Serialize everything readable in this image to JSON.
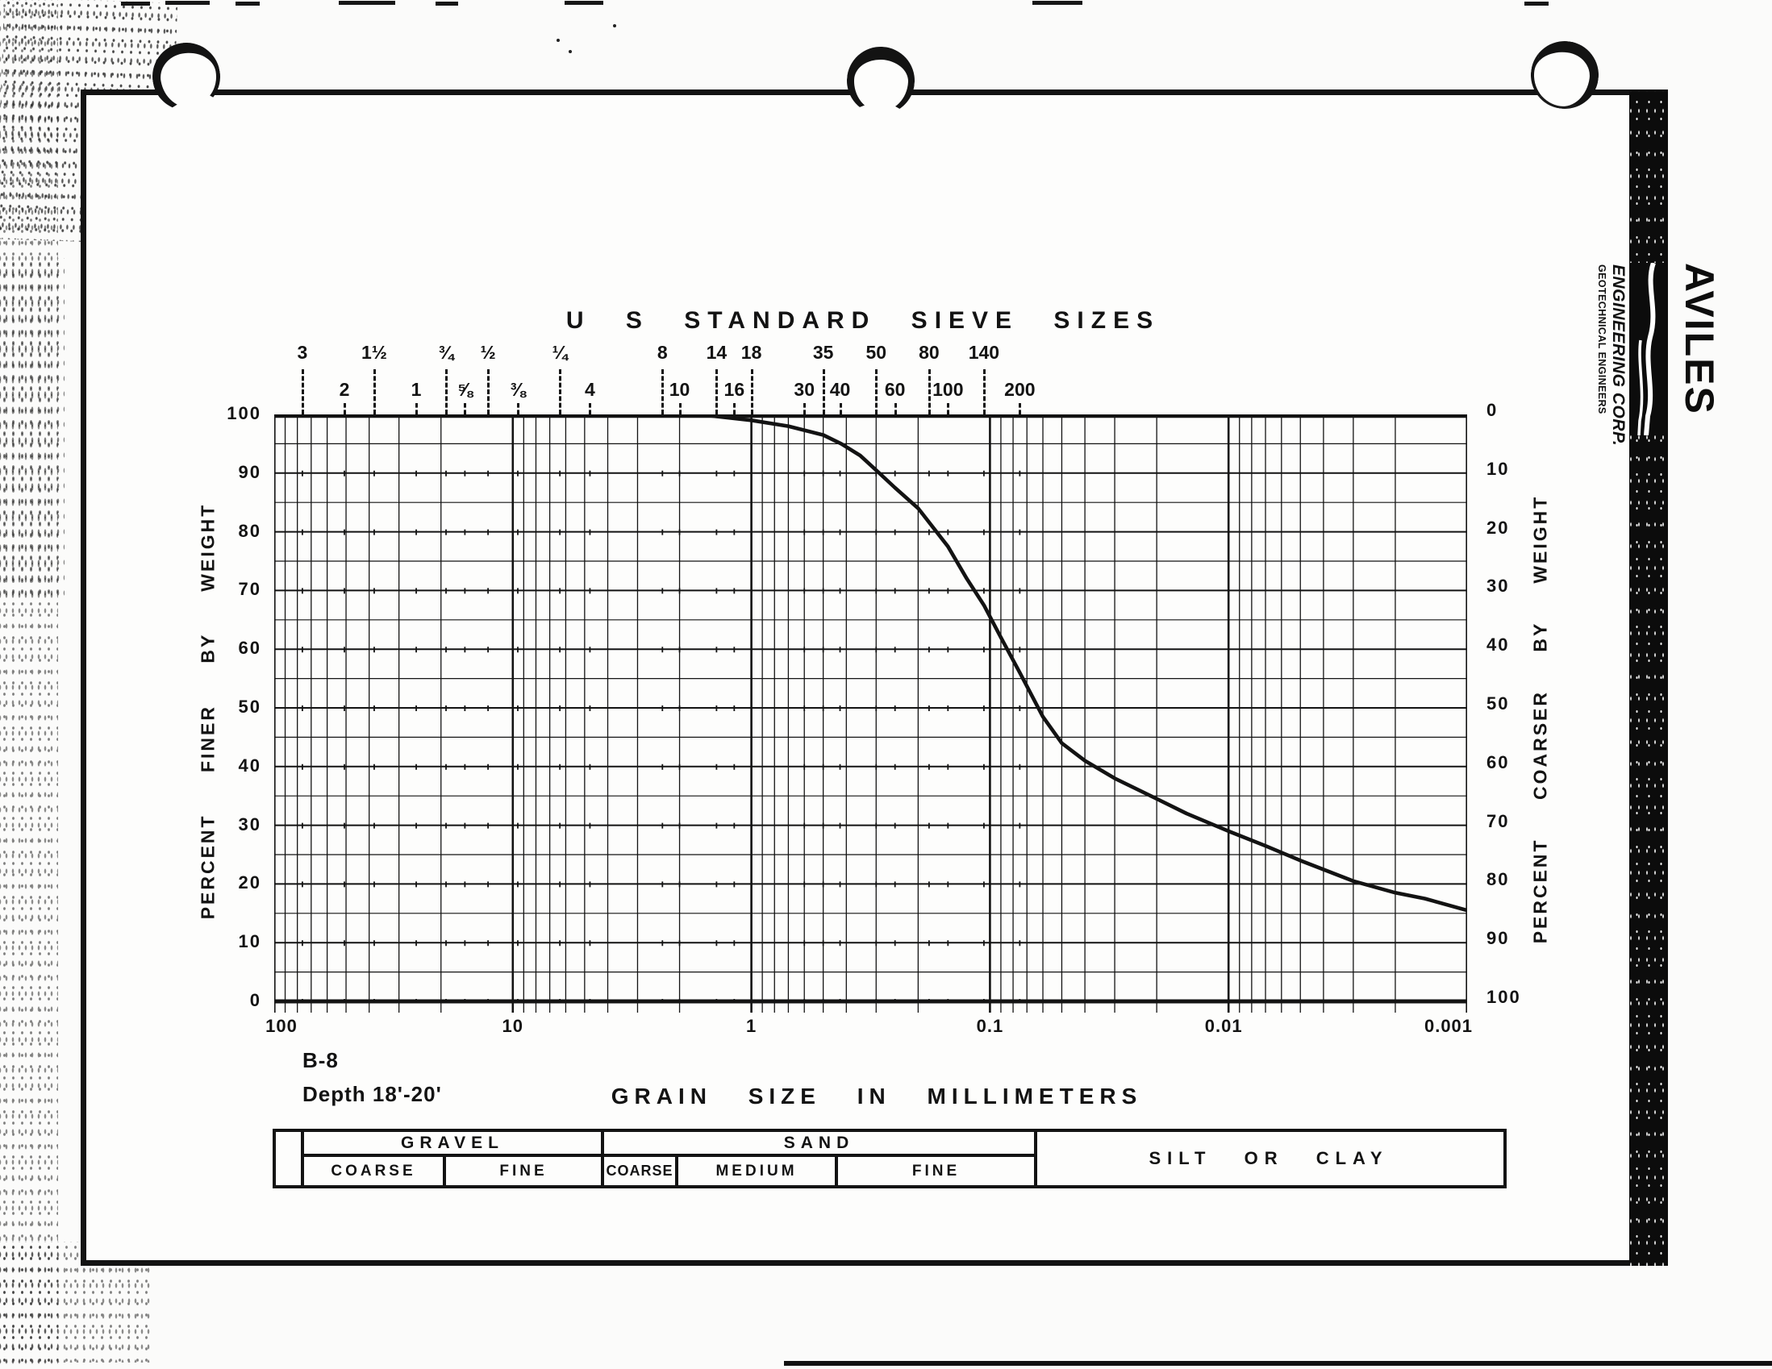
{
  "page": {
    "title_top": "U S STANDARD SIEVE SIZES",
    "sample_id": "B-8",
    "depth_label": "Depth 18'-20'",
    "xaxis_title": "GRAIN SIZE IN MILLIMETERS",
    "ylabel_left": "PERCENT FINER BY WEIGHT",
    "ylabel_right": "PERCENT COARSER BY WEIGHT",
    "ink_color": "#131313",
    "paper_color": "#fdfdfc"
  },
  "logo": {
    "name": "AVILES",
    "line1": "ENGINEERING CORP.",
    "line2": "GEOTECHNICAL ENGINEERS"
  },
  "axes": {
    "x_decade_labels": [
      "100",
      "10",
      "1",
      "0.1",
      "0.01",
      "0.001"
    ],
    "y_left_labels": [
      "100",
      "90",
      "80",
      "70",
      "60",
      "50",
      "40",
      "30",
      "20",
      "10",
      "0"
    ],
    "y_right_labels": [
      "0",
      "10",
      "20",
      "30",
      "40",
      "50",
      "60",
      "70",
      "80",
      "90",
      "100"
    ]
  },
  "classification": {
    "gravel": "GRAVEL",
    "gravel_coarse": "COARSE",
    "gravel_fine": "FINE",
    "sand": "SAND",
    "sand_coarse": "COARSE",
    "sand_medium": "MEDIUM",
    "sand_fine": "FINE",
    "silt_or_clay": "SILT OR CLAY"
  },
  "chart_data": {
    "type": "line",
    "title": "U S STANDARD SIEVE SIZES",
    "xlabel": "GRAIN SIZE IN MILLIMETERS",
    "ylabel": "PERCENT FINER BY WEIGHT",
    "ylabel_secondary": "PERCENT COARSER BY WEIGHT",
    "x_scale": "log",
    "x_range_mm": [
      100,
      0.001
    ],
    "ylim": [
      0,
      100
    ],
    "grid": true,
    "series": [
      {
        "name": "B-8 Depth 18'-20'",
        "points_mm_percent_finer": [
          [
            2.5,
            100
          ],
          [
            1.5,
            99.8
          ],
          [
            1.0,
            99
          ],
          [
            0.7,
            98
          ],
          [
            0.5,
            96.5
          ],
          [
            0.42,
            95
          ],
          [
            0.35,
            93
          ],
          [
            0.3,
            90.5
          ],
          [
            0.25,
            87.5
          ],
          [
            0.2,
            84
          ],
          [
            0.15,
            77.5
          ],
          [
            0.125,
            72
          ],
          [
            0.106,
            67.5
          ],
          [
            0.09,
            62
          ],
          [
            0.075,
            56
          ],
          [
            0.06,
            48.5
          ],
          [
            0.05,
            44
          ],
          [
            0.04,
            41
          ],
          [
            0.03,
            38
          ],
          [
            0.02,
            34.5
          ],
          [
            0.015,
            32
          ],
          [
            0.01,
            29
          ],
          [
            0.007,
            26.5
          ],
          [
            0.005,
            24
          ],
          [
            0.003,
            20.5
          ],
          [
            0.002,
            18.5
          ],
          [
            0.0015,
            17.5
          ],
          [
            0.001,
            15.5
          ]
        ]
      }
    ],
    "sieve_ticks": [
      {
        "label": "3",
        "mm": 76.2,
        "row": 1
      },
      {
        "label": "2",
        "mm": 50.8,
        "row": 2
      },
      {
        "label": "1½",
        "mm": 38.1,
        "row": 1
      },
      {
        "label": "1",
        "mm": 25.4,
        "row": 2
      },
      {
        "label": "¾",
        "mm": 19.05,
        "row": 1
      },
      {
        "label": "⅝",
        "mm": 15.88,
        "row": 2
      },
      {
        "label": "½",
        "mm": 12.7,
        "row": 1
      },
      {
        "label": "⅜",
        "mm": 9.53,
        "row": 2
      },
      {
        "label": "¼",
        "mm": 6.35,
        "row": 1
      },
      {
        "label": "4",
        "mm": 4.75,
        "row": 2
      },
      {
        "label": "8",
        "mm": 2.36,
        "row": 1
      },
      {
        "label": "10",
        "mm": 2.0,
        "row": 2
      },
      {
        "label": "14",
        "mm": 1.4,
        "row": 1
      },
      {
        "label": "16",
        "mm": 1.18,
        "row": 2
      },
      {
        "label": "18",
        "mm": 1.0,
        "row": 1
      },
      {
        "label": "30",
        "mm": 0.6,
        "row": 2
      },
      {
        "label": "35",
        "mm": 0.5,
        "row": 1
      },
      {
        "label": "40",
        "mm": 0.425,
        "row": 2
      },
      {
        "label": "50",
        "mm": 0.3,
        "row": 1
      },
      {
        "label": "60",
        "mm": 0.25,
        "row": 2
      },
      {
        "label": "80",
        "mm": 0.18,
        "row": 1
      },
      {
        "label": "100",
        "mm": 0.15,
        "row": 2
      },
      {
        "label": "140",
        "mm": 0.106,
        "row": 1
      },
      {
        "label": "200",
        "mm": 0.075,
        "row": 2
      }
    ]
  }
}
